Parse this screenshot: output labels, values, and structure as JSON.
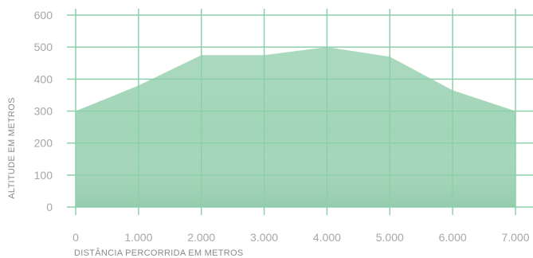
{
  "chart_data": {
    "type": "area",
    "xlabel": "DISTÂNCIA PERCORRIDA EM METROS",
    "ylabel": "ALTITUDE EM METROS",
    "xlim": [
      0,
      7000
    ],
    "ylim": [
      0,
      600
    ],
    "x_ticks": [
      {
        "value": 0,
        "label": "0"
      },
      {
        "value": 1000,
        "label": "1.000"
      },
      {
        "value": 2000,
        "label": "2.000"
      },
      {
        "value": 3000,
        "label": "3.000"
      },
      {
        "value": 4000,
        "label": "4.000"
      },
      {
        "value": 5000,
        "label": "5.000"
      },
      {
        "value": 6000,
        "label": "6.000"
      },
      {
        "value": 7000,
        "label": "7.000"
      }
    ],
    "y_ticks": [
      {
        "value": 0,
        "label": "0"
      },
      {
        "value": 100,
        "label": "100"
      },
      {
        "value": 200,
        "label": "200"
      },
      {
        "value": 300,
        "label": "300"
      },
      {
        "value": 400,
        "label": "400"
      },
      {
        "value": 500,
        "label": "500"
      },
      {
        "value": 600,
        "label": "600"
      }
    ],
    "x": [
      0,
      1000,
      2000,
      3000,
      4000,
      5000,
      6000,
      7000
    ],
    "y": [
      300,
      380,
      475,
      475,
      500,
      470,
      365,
      300
    ],
    "grid": true,
    "colors": {
      "area": "#a2d5b8",
      "grid": "#8dcfab",
      "axis_line": "#8dcfab"
    }
  }
}
